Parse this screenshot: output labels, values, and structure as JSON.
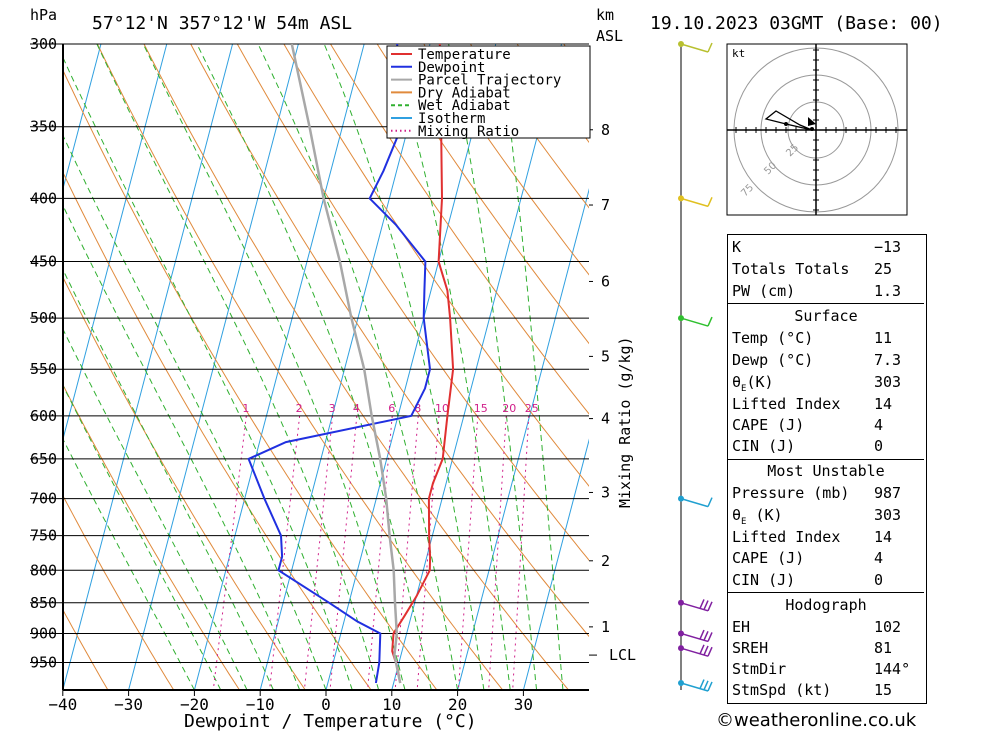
{
  "header": {
    "pressure_unit": "hPa",
    "location": "57°12'N  357°12'W  54m  ASL",
    "height_unit_top": "km",
    "height_unit_bottom": "ASL",
    "datetime": "19.10.2023  03GMT  (Base: 00)"
  },
  "chart_data": {
    "type": "line",
    "title": "Skew-T log-P sounding",
    "xlabel": "Dewpoint / Temperature (°C)",
    "ylabel": "hPa",
    "right_label": "Mixing Ratio (g/kg)",
    "x_ticks": [
      -40,
      -30,
      -20,
      -10,
      0,
      10,
      20,
      30
    ],
    "x_tick_labels": [
      "−40",
      "−30",
      "−20",
      "−10",
      "0",
      "10",
      "20",
      "30"
    ],
    "p_ticks": [
      300,
      350,
      400,
      450,
      500,
      550,
      600,
      650,
      700,
      750,
      800,
      850,
      900,
      950
    ],
    "p_tick_labels": [
      "300",
      "350",
      "400",
      "450",
      "500",
      "550",
      "600",
      "650",
      "700",
      "750",
      "800",
      "850",
      "900",
      "950"
    ],
    "height_ticks": [
      {
        "km": "8",
        "p": 352
      },
      {
        "km": "7",
        "p": 405
      },
      {
        "km": "6",
        "p": 467
      },
      {
        "km": "5",
        "p": 537
      },
      {
        "km": "4",
        "p": 603
      },
      {
        "km": "3",
        "p": 692
      },
      {
        "km": "2",
        "p": 786
      },
      {
        "km": "1",
        "p": 889
      }
    ],
    "lcl": {
      "label": "LCL",
      "p": 937
    },
    "mixing_ratio_labels": [
      "1",
      "2",
      "3",
      "4",
      "6",
      "8",
      "10",
      "15",
      "20",
      "25"
    ],
    "mixing_ratio_values": [
      1,
      2,
      3,
      4,
      6,
      8,
      10,
      15,
      20,
      25
    ],
    "mixing_label_pressure": 600,
    "series": [
      {
        "name": "Temperature",
        "color": "#e03030",
        "points": [
          [
            11,
            987
          ],
          [
            10,
            960
          ],
          [
            8.5,
            930
          ],
          [
            8,
            900
          ],
          [
            9,
            870
          ],
          [
            10,
            840
          ],
          [
            11,
            800
          ],
          [
            10.5,
            780
          ],
          [
            9.5,
            750
          ],
          [
            8,
            700
          ],
          [
            8,
            680
          ],
          [
            8.5,
            650
          ],
          [
            7.5,
            600
          ],
          [
            6.5,
            550
          ],
          [
            4,
            500
          ],
          [
            2.5,
            475
          ],
          [
            0,
            450
          ],
          [
            -2,
            400
          ],
          [
            -5,
            350
          ],
          [
            -8.5,
            300
          ]
        ]
      },
      {
        "name": "Dewpoint",
        "color": "#2030e0",
        "points": [
          [
            7.3,
            987
          ],
          [
            7,
            950
          ],
          [
            6,
            900
          ],
          [
            2,
            880
          ],
          [
            -3,
            850
          ],
          [
            -12,
            800
          ],
          [
            -12,
            780
          ],
          [
            -13,
            750
          ],
          [
            -17,
            700
          ],
          [
            -21,
            650
          ],
          [
            -16,
            630
          ],
          [
            2,
            600
          ],
          [
            3,
            570
          ],
          [
            3,
            550
          ],
          [
            0,
            500
          ],
          [
            -1,
            475
          ],
          [
            -2,
            450
          ],
          [
            -8,
            420
          ],
          [
            -13,
            400
          ],
          [
            -12,
            380
          ],
          [
            -11,
            350
          ],
          [
            -13,
            320
          ],
          [
            -15,
            300
          ]
        ]
      },
      {
        "name": "Parcel Trajectory",
        "color": "#a8a8a8",
        "points": [
          [
            11,
            987
          ],
          [
            9,
            937
          ],
          [
            8.5,
            900
          ],
          [
            7,
            850
          ],
          [
            5.5,
            800
          ],
          [
            3.5,
            750
          ],
          [
            1.5,
            700
          ],
          [
            -1,
            650
          ],
          [
            -4,
            600
          ],
          [
            -7,
            550
          ],
          [
            -11,
            500
          ],
          [
            -15,
            450
          ],
          [
            -20,
            400
          ],
          [
            -25,
            350
          ],
          [
            -31,
            300
          ]
        ]
      }
    ],
    "legend": {
      "placement": "top-right",
      "items": [
        {
          "label": "Temperature",
          "color": "#e03030",
          "style": "solid"
        },
        {
          "label": "Dewpoint",
          "color": "#2030e0",
          "style": "solid"
        },
        {
          "label": "Parcel Trajectory",
          "color": "#a8a8a8",
          "style": "solid"
        },
        {
          "label": "Dry Adiabat",
          "color": "#e08a3c",
          "style": "solid"
        },
        {
          "label": "Wet Adiabat",
          "color": "#30b030",
          "style": "dashed"
        },
        {
          "label": "Isotherm",
          "color": "#30a0e0",
          "style": "solid"
        },
        {
          "label": "Mixing Ratio",
          "color": "#d0208a",
          "style": "dotted"
        }
      ]
    },
    "wind_barbs": [
      {
        "p": 300,
        "color": "#b8c030"
      },
      {
        "p": 400,
        "color": "#e0c020"
      },
      {
        "p": 500,
        "color": "#30c030"
      },
      {
        "p": 700,
        "color": "#20a0d0"
      },
      {
        "p": 850,
        "color": "#8020a0"
      },
      {
        "p": 900,
        "color": "#8020a0"
      },
      {
        "p": 925,
        "color": "#8020a0"
      },
      {
        "p": 987,
        "color": "#20a0d0"
      }
    ]
  },
  "hodograph": {
    "unit": "kt",
    "ring_labels": [
      "25",
      "50",
      "75"
    ]
  },
  "indices": {
    "k_label": "K",
    "k_value": "−13",
    "tt_label": "Totals Totals",
    "tt_value": "25",
    "pw_label": "PW (cm)",
    "pw_value": "1.3"
  },
  "surface": {
    "title": "Surface",
    "temp_label": "Temp (°C)",
    "temp_value": "11",
    "dewp_label": "Dewp (°C)",
    "dewp_value": "7.3",
    "theta_label": "θ",
    "theta_sub": "E",
    "theta_unit": "(K)",
    "theta_value": "303",
    "li_label": "Lifted Index",
    "li_value": "14",
    "cape_label": "CAPE (J)",
    "cape_value": "4",
    "cin_label": "CIN (J)",
    "cin_value": "0"
  },
  "most_unstable": {
    "title": "Most Unstable",
    "pressure_label": "Pressure (mb)",
    "pressure_value": "987",
    "theta_label": "θ",
    "theta_sub": "E",
    "theta_unit": " (K)",
    "theta_value": "303",
    "li_label": "Lifted Index",
    "li_value": "14",
    "cape_label": "CAPE (J)",
    "cape_value": "4",
    "cin_label": "CIN (J)",
    "cin_value": "0"
  },
  "hodo_params": {
    "title": "Hodograph",
    "eh_label": "EH",
    "eh_value": "102",
    "sreh_label": "SREH",
    "sreh_value": "81",
    "stmdir_label": "StmDir",
    "stmdir_value": "144°",
    "stmspd_label": "StmSpd (kt)",
    "stmspd_value": "15"
  },
  "footer": {
    "copyright": "©weatheronline.co.uk"
  }
}
